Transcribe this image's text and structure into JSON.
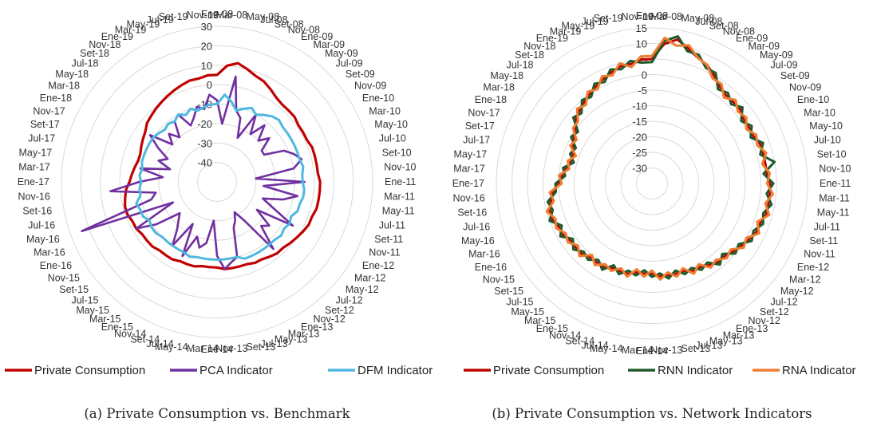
{
  "chart_data": [
    {
      "type": "radar",
      "caption": "(a) Private Consumption vs. Benchmark",
      "rtick_labels": [
        "30",
        "20",
        "10",
        "0",
        "-10",
        "-20",
        "-30",
        "-40"
      ],
      "rlim": [
        -50,
        30
      ],
      "grid": true,
      "legend_position": "bottom",
      "categories": [
        "Ene-08",
        "Mar-08",
        "May-08",
        "Jul-08",
        "Set-08",
        "Nov-08",
        "Ene-09",
        "Mar-09",
        "May-09",
        "Jul-09",
        "Set-09",
        "Nov-09",
        "Ene-10",
        "Mar-10",
        "May-10",
        "Jul-10",
        "Set-10",
        "Nov-10",
        "Ene-11",
        "Mar-11",
        "May-11",
        "Jul-11",
        "Set-11",
        "Nov-11",
        "Ene-12",
        "Mar-12",
        "May-12",
        "Jul-12",
        "Set-12",
        "Nov-12",
        "Ene-13",
        "Mar-13",
        "May-13",
        "Jul-13",
        "Set-13",
        "Nov-13",
        "Ene-14",
        "Mar-14",
        "May-14",
        "Jul-14",
        "Set-14",
        "Nov-14",
        "Ene-15",
        "Mar-15",
        "May-15",
        "Jul-15",
        "Set-15",
        "Nov-15",
        "Ene-16",
        "Mar-16",
        "May-16",
        "Jul-16",
        "Set-16",
        "Nov-16",
        "Ene-17",
        "Mar-17",
        "May-17",
        "Jul-17",
        "Set-17",
        "Nov-17",
        "Ene-18",
        "Mar-18",
        "May-18",
        "Jul-18",
        "Set-18",
        "Nov-18",
        "Ene-19",
        "Mar-19",
        "May-19",
        "Jul-19",
        "Set-19",
        "Nov-19"
      ],
      "series": [
        {
          "name": "Private Consumption",
          "color": "#c00000",
          "values": [
            5,
            10,
            12,
            10,
            8,
            7,
            5,
            3,
            2,
            2,
            2,
            1,
            1,
            1,
            2,
            2,
            2,
            2,
            3,
            3,
            3,
            3,
            2,
            2,
            1,
            0,
            -1,
            -2,
            -2,
            -3,
            -4,
            -4,
            -5,
            -5,
            -5,
            -5,
            -6,
            -6,
            -6,
            -5,
            -5,
            -5,
            -4,
            -4,
            -4,
            -3,
            -3,
            -3,
            -2,
            -2,
            -1,
            -1,
            -2,
            -3,
            -5,
            -6,
            -7,
            -8,
            -8,
            -7,
            -6,
            -5,
            -3,
            -2,
            -1,
            0,
            1,
            2,
            3,
            4,
            4,
            5
          ]
        },
        {
          "name": "PCA Indicator",
          "color": "#7030a0",
          "values": [
            -8,
            -20,
            5,
            -12,
            -15,
            -25,
            -10,
            -20,
            -12,
            -20,
            -15,
            -22,
            -22,
            -12,
            -8,
            -5,
            -10,
            -30,
            -5,
            -26,
            -8,
            -15,
            -25,
            -18,
            -5,
            -25,
            -15,
            -18,
            -5,
            -26,
            -32,
            -28,
            -25,
            -10,
            -8,
            -5,
            -12,
            -30,
            -18,
            -15,
            -20,
            -8,
            -25,
            -10,
            -18,
            -22,
            -25,
            -12,
            -2,
            -25,
            24,
            -15,
            -18,
            5,
            -10,
            -22,
            -10,
            -25,
            -18,
            -22,
            -15,
            -8,
            -20,
            -15,
            -20,
            -12,
            -10,
            -18,
            -15,
            -10,
            -12,
            -5
          ]
        },
        {
          "name": "DFM Indicator",
          "color": "#4fb8e0",
          "values": [
            -10,
            -5,
            -8,
            -12,
            -10,
            -8,
            -10,
            -8,
            -6,
            -5,
            -6,
            -6,
            -6,
            -6,
            -6,
            -6,
            -5,
            -6,
            -6,
            -5,
            -5,
            -6,
            -6,
            -8,
            -7,
            -8,
            -7,
            -8,
            -8,
            -8,
            -8,
            -8,
            -8,
            -10,
            -10,
            -10,
            -10,
            -10,
            -10,
            -10,
            -9,
            -10,
            -10,
            -10,
            -10,
            -10,
            -9,
            -9,
            -10,
            -8,
            -8,
            -7,
            -10,
            -10,
            -11,
            -10,
            -11,
            -10,
            -10,
            -10,
            -10,
            -10,
            -11,
            -12,
            -11,
            -12,
            -10,
            -12,
            -10,
            -12,
            -11,
            -10
          ]
        }
      ]
    },
    {
      "type": "radar",
      "caption": "(b) Private Consumption vs. Network Indicators",
      "rtick_labels": [
        "15",
        "10",
        "5",
        "0",
        "-5",
        "-10",
        "-15",
        "-20",
        "-25",
        "-30"
      ],
      "rlim": [
        -35,
        15
      ],
      "grid": true,
      "legend_position": "bottom",
      "categories": [
        "Ene-08",
        "Mar-08",
        "May-08",
        "Jul-08",
        "Set-08",
        "Nov-08",
        "Ene-09",
        "Mar-09",
        "May-09",
        "Jul-09",
        "Set-09",
        "Nov-09",
        "Ene-10",
        "Mar-10",
        "May-10",
        "Jul-10",
        "Set-10",
        "Nov-10",
        "Ene-11",
        "Mar-11",
        "May-11",
        "Jul-11",
        "Set-11",
        "Nov-11",
        "Ene-12",
        "Mar-12",
        "May-12",
        "Jul-12",
        "Set-12",
        "Nov-12",
        "Ene-13",
        "Mar-13",
        "May-13",
        "Jul-13",
        "Set-13",
        "Nov-13",
        "Ene-14",
        "Mar-14",
        "May-14",
        "Jul-14",
        "Set-14",
        "Nov-14",
        "Ene-15",
        "Mar-15",
        "May-15",
        "Jul-15",
        "Set-15",
        "Nov-15",
        "Ene-16",
        "Mar-16",
        "May-16",
        "Jul-16",
        "Set-16",
        "Nov-16",
        "Ene-17",
        "Mar-17",
        "May-17",
        "Jul-17",
        "Set-17",
        "Nov-17",
        "Ene-18",
        "Mar-18",
        "May-18",
        "Jul-18",
        "Set-18",
        "Nov-18",
        "Ene-19",
        "Mar-19",
        "May-19",
        "Jul-19",
        "Set-19",
        "Nov-19"
      ],
      "series": [
        {
          "name": "Private Consumption",
          "color": "#c00000",
          "values": [
            5,
            10,
            12,
            10,
            8,
            7,
            5,
            3,
            2,
            2,
            2,
            1,
            1,
            1,
            2,
            2,
            2,
            2,
            3,
            3,
            3,
            3,
            2,
            2,
            1,
            0,
            -1,
            -2,
            -2,
            -3,
            -4,
            -4,
            -5,
            -5,
            -5,
            -5,
            -6,
            -6,
            -6,
            -5,
            -5,
            -5,
            -4,
            -4,
            -4,
            -3,
            -3,
            -3,
            -2,
            -2,
            -1,
            -1,
            -2,
            -3,
            -5,
            -6,
            -7,
            -8,
            -8,
            -7,
            -6,
            -5,
            -3,
            -2,
            -1,
            0,
            1,
            2,
            3,
            4,
            4,
            5
          ]
        },
        {
          "name": "RNN Indicator",
          "color": "#1e5a2a",
          "values": [
            4,
            11,
            13,
            9,
            9,
            6,
            6,
            2,
            3,
            1,
            3,
            0,
            2,
            0,
            3,
            1,
            5,
            1,
            4,
            2,
            4,
            2,
            3,
            1,
            2,
            -1,
            0,
            -3,
            -1,
            -4,
            -3,
            -5,
            -4,
            -6,
            -4,
            -6,
            -5,
            -7,
            -5,
            -6,
            -4,
            -6,
            -3,
            -5,
            -3,
            -4,
            -2,
            -4,
            -1,
            -3,
            0,
            -2,
            -1,
            -4,
            -4,
            -7,
            -6,
            -9,
            -7,
            -8,
            -5,
            -6,
            -2,
            -3,
            0,
            -1,
            2,
            1,
            4,
            3,
            5,
            4
          ]
        },
        {
          "name": "RNA Indicator",
          "color": "#ed7d31",
          "values": [
            6,
            12,
            10,
            11,
            8,
            7,
            4,
            4,
            1,
            3,
            1,
            2,
            0,
            2,
            1,
            3,
            1,
            3,
            2,
            4,
            2,
            4,
            1,
            3,
            0,
            1,
            -2,
            -1,
            -3,
            -2,
            -5,
            -3,
            -6,
            -4,
            -6,
            -4,
            -7,
            -5,
            -7,
            -4,
            -6,
            -4,
            -5,
            -3,
            -5,
            -2,
            -4,
            -2,
            -3,
            -1,
            -2,
            0,
            -3,
            -2,
            -6,
            -5,
            -8,
            -7,
            -9,
            -6,
            -7,
            -4,
            -4,
            -1,
            -2,
            1,
            0,
            3,
            2,
            5,
            3,
            6
          ]
        }
      ]
    }
  ]
}
